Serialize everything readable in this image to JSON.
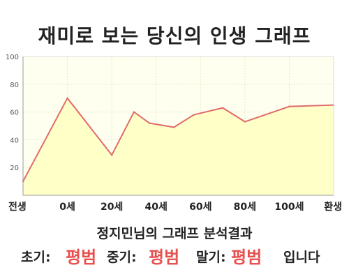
{
  "title": "재미로 보는 당신의 인생 그래프",
  "colors": {
    "line": "#e06b6b",
    "fill": "#ffffc8",
    "plot_bg": "#fffff0",
    "grid": "#e6e6c8",
    "result_value": "#e8504f"
  },
  "chart_data": {
    "type": "area",
    "title": "재미로 보는 당신의 인생 그래프",
    "xlabel": "",
    "ylabel": "",
    "ylim": [
      0,
      100
    ],
    "yticks": [
      20,
      40,
      60,
      80,
      100
    ],
    "x_ticks": [
      "전생",
      "0세",
      "20세",
      "40세",
      "60세",
      "80세",
      "100세",
      "환생"
    ],
    "grid": true,
    "legend": "none",
    "series": [
      {
        "points": [
          {
            "x": -20,
            "y": 10
          },
          {
            "x": 0,
            "y": 70
          },
          {
            "x": 20,
            "y": 29
          },
          {
            "x": 30,
            "y": 60
          },
          {
            "x": 37,
            "y": 52
          },
          {
            "x": 48,
            "y": 49
          },
          {
            "x": 57,
            "y": 58
          },
          {
            "x": 70,
            "y": 63
          },
          {
            "x": 80,
            "y": 53
          },
          {
            "x": 100,
            "y": 64
          },
          {
            "x": 120,
            "y": 65
          }
        ]
      }
    ]
  },
  "result": {
    "heading": "정지민님의 그래프 분석결과",
    "early_label": "초기:",
    "early_value": "평범",
    "middle_label": "중기:",
    "middle_value": "평범",
    "late_label": "말기:",
    "late_value": "평범",
    "suffix": "입니다"
  }
}
